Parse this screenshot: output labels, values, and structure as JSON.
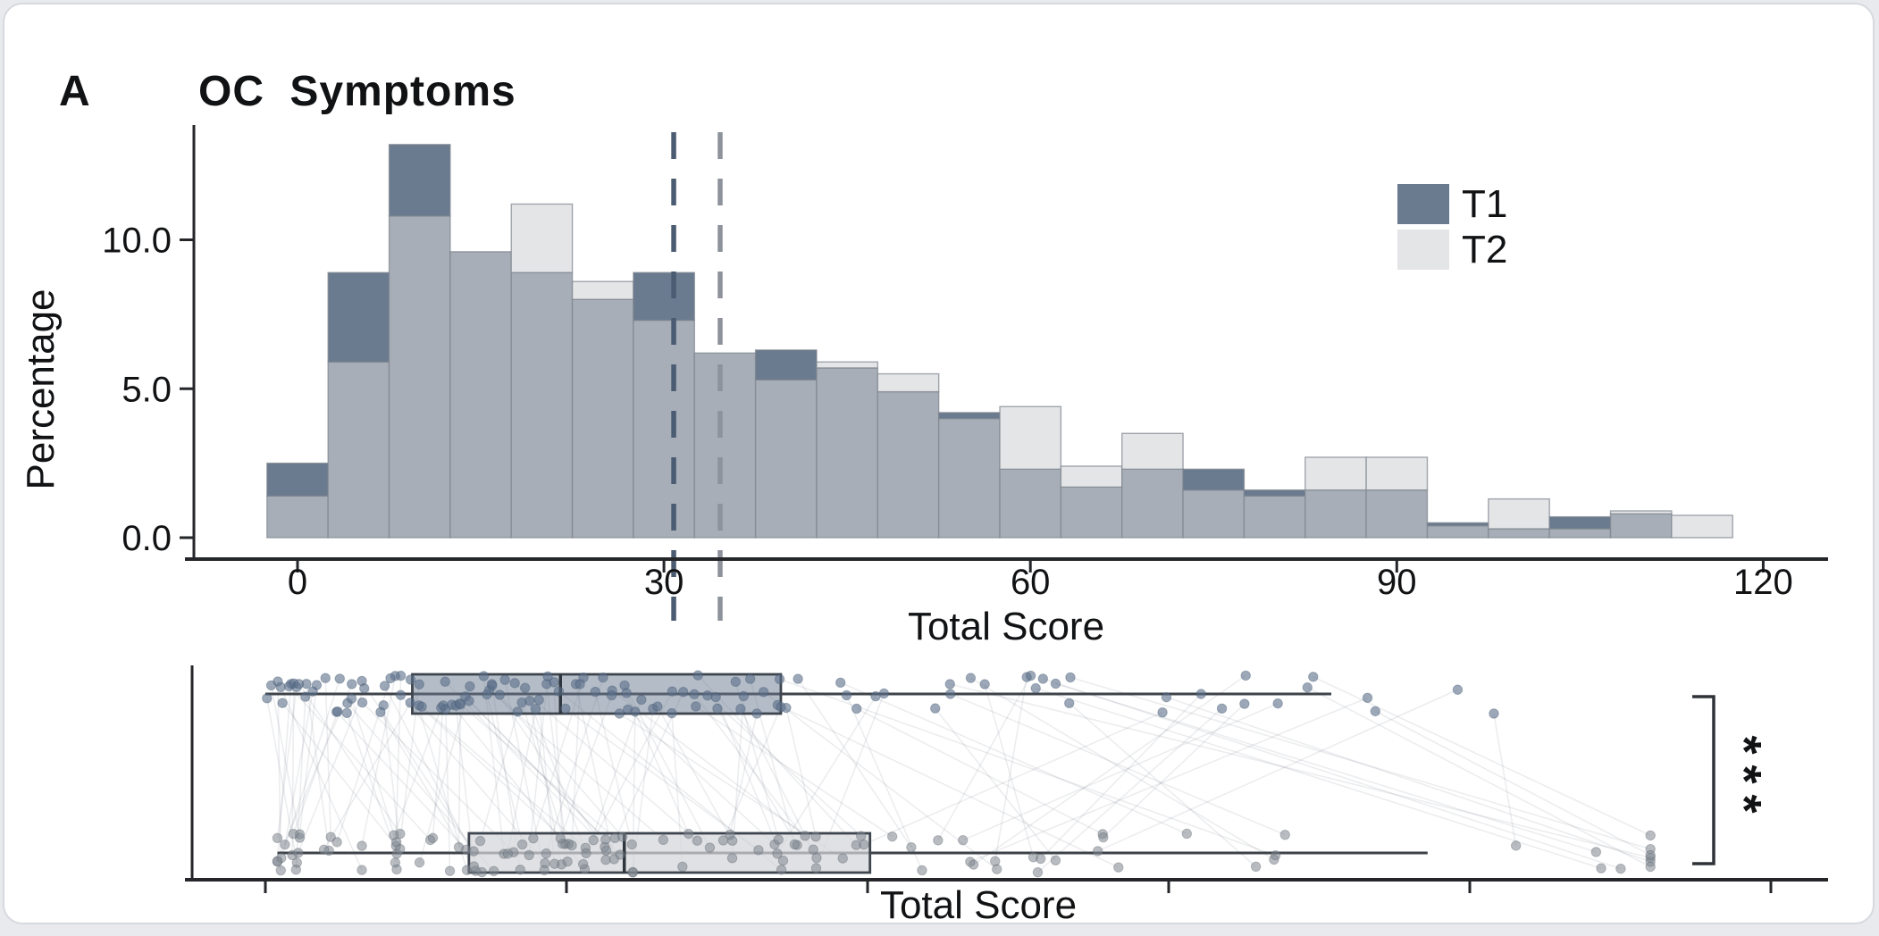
{
  "figure": {
    "panel_label": "A",
    "title": "OC Symptoms",
    "significance": "***",
    "legend": {
      "items": [
        {
          "label": "T1",
          "color": "#6a7a8f"
        },
        {
          "label": "T2",
          "color": "#e4e5e7"
        }
      ]
    },
    "colors": {
      "t1": "#6a7a8f",
      "t2": "#e4e5e7",
      "overlap": "#a7aeb8",
      "axis": "#24262a",
      "mean_line_t1": "#4b5c72",
      "mean_line_t2": "#8d929b"
    }
  },
  "chart_data": [
    {
      "type": "bar",
      "subtype": "overlaid-histogram",
      "title": "OC Symptoms",
      "xlabel": "Total Score",
      "ylabel": "Percentage",
      "bin_width": 5,
      "categories": [
        0,
        5,
        10,
        15,
        20,
        25,
        30,
        35,
        40,
        45,
        50,
        55,
        60,
        65,
        70,
        75,
        80,
        85,
        90,
        95,
        100,
        105,
        110,
        115
      ],
      "series": [
        {
          "name": "T1",
          "color": "#6a7a8f",
          "values": [
            2.5,
            8.9,
            13.2,
            9.6,
            8.9,
            8.0,
            8.9,
            6.2,
            6.3,
            5.7,
            4.9,
            4.2,
            2.3,
            1.7,
            2.3,
            2.3,
            1.6,
            1.6,
            1.6,
            0.5,
            0.3,
            0.7,
            0.8,
            0.0
          ]
        },
        {
          "name": "T2",
          "color": "#e4e5e7",
          "values": [
            1.4,
            5.9,
            10.8,
            9.6,
            11.2,
            8.6,
            7.3,
            6.2,
            5.3,
            5.9,
            5.5,
            4.0,
            4.4,
            2.4,
            3.5,
            1.6,
            1.4,
            2.7,
            2.7,
            0.4,
            1.3,
            0.3,
            0.9,
            0.75
          ]
        }
      ],
      "overlap_color": "#a7aeb8",
      "mean_lines": [
        {
          "series": "T1",
          "value": 30.8,
          "color": "#4b5c72"
        },
        {
          "series": "T2",
          "value": 34.6,
          "color": "#8d929b"
        }
      ],
      "x_ticks": [
        0,
        30,
        60,
        90,
        120
      ],
      "x_tick_labels": [
        "0",
        "30",
        "60",
        "90",
        "120"
      ],
      "y_ticks": [
        0,
        5,
        10
      ],
      "y_tick_labels": [
        "0.0",
        "5.0",
        "10.0"
      ],
      "xlim": [
        -7.5,
        125
      ],
      "ylim": [
        0,
        13.5
      ],
      "grid": false,
      "legend_position": "top-right"
    },
    {
      "type": "table",
      "subtype": "paired-horizontal-boxplot-with-points",
      "xlabel": "Total Score",
      "x_ticks": [
        0,
        25,
        50,
        75,
        100,
        125
      ],
      "x_tick_labels": [
        "",
        "",
        "",
        "",
        "",
        ""
      ],
      "groups": [
        {
          "name": "T1",
          "color": "#6a7a8f",
          "whisker_low": 0,
          "q1": 12.2,
          "median": 24.5,
          "q3": 42.8,
          "whisker_high": 88.5,
          "points_max": 102
        },
        {
          "name": "T2",
          "color": "#e4e5e7",
          "whisker_low": 1,
          "q1": 16.9,
          "median": 29.8,
          "q3": 50.2,
          "whisker_high": 96.5,
          "points_max": 115
        }
      ],
      "n_pairs": 132,
      "paired_lines": true,
      "significance": "***",
      "legend_position": "none",
      "grid": false
    }
  ]
}
